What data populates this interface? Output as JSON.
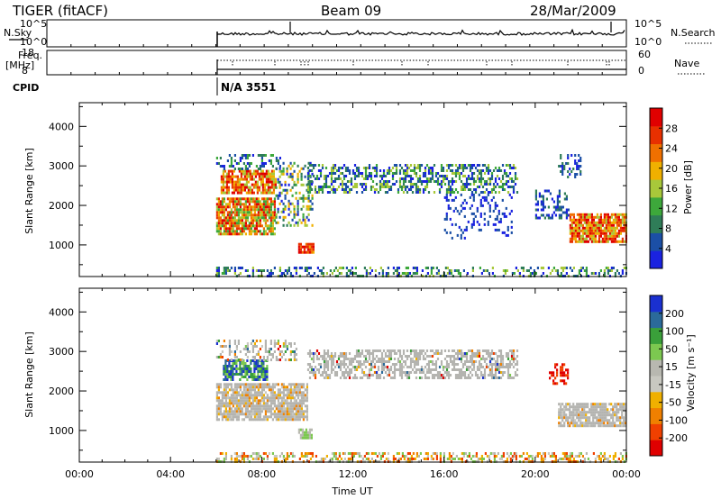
{
  "header": {
    "title": "TIGER (fitACF)",
    "beam": "Beam 09",
    "date": "28/Mar/2009"
  },
  "top_panels": {
    "nsky_label": "N.Sky",
    "nsky_ticks": [
      "10^5",
      "10^0"
    ],
    "nsearch_label": "N.Search",
    "nsearch_ticks": [
      "10^5",
      "10^0"
    ],
    "freq_label_1": "Freq.",
    "freq_label_2": "[MHz]",
    "freq_ticks": [
      "18",
      "8"
    ],
    "nave_label": "Nave",
    "nave_ticks": [
      "60",
      "0"
    ],
    "cpid_label": "CPID",
    "cpid_value": "N/A 3551"
  },
  "colors": {
    "power_scale": [
      "#1a22e0",
      "#1b4fa6",
      "#2f7d58",
      "#3da83b",
      "#a8c83a",
      "#f0b000",
      "#f07000",
      "#e83000",
      "#e00000"
    ],
    "velocity_scale": [
      "#e00000",
      "#f04000",
      "#f08000",
      "#f0b000",
      "#c8c8c0",
      "#b8b8b0",
      "#7cc850",
      "#3aa03a",
      "#2b6a9a",
      "#1a30d0"
    ],
    "ground_scatter": "#b4b4b0"
  },
  "chart_data": [
    {
      "type": "heatmap",
      "panel": "power",
      "ylabel": "Slant Range [km]",
      "xlabel": "",
      "ylim": [
        200,
        4600
      ],
      "yticks": [
        "1000",
        "2000",
        "3000",
        "4000"
      ],
      "xlim_hours": [
        0,
        24
      ],
      "colorbar_label": "Power [dB]",
      "colorbar_ticks": [
        "28",
        "24",
        "20",
        "16",
        "12",
        "8",
        "4"
      ],
      "colorbar_range": [
        0,
        32
      ],
      "data_start_hour": 6,
      "features": [
        {
          "hours": [
            6,
            8.5
          ],
          "range_km": [
            1400,
            2100
          ],
          "value_db": 22
        },
        {
          "hours": [
            6,
            8.5
          ],
          "range_km": [
            2300,
            2800
          ],
          "value_db": 24
        },
        {
          "hours": [
            9.6,
            10.2
          ],
          "range_km": [
            800,
            1050
          ],
          "value_db": 22
        },
        {
          "hours": [
            10,
            19
          ],
          "range_km": [
            2300,
            3000
          ],
          "value_db": 10
        },
        {
          "hours": [
            21.5,
            24
          ],
          "range_km": [
            1200,
            1700
          ],
          "value_db": 24
        }
      ]
    },
    {
      "type": "heatmap",
      "panel": "velocity",
      "ylabel": "Slant Range [km]",
      "xlabel": "Time UT",
      "ylim": [
        200,
        4600
      ],
      "yticks": [
        "1000",
        "2000",
        "3000",
        "4000"
      ],
      "xlim_hours": [
        0,
        24
      ],
      "xticks": [
        "00:00",
        "04:00",
        "08:00",
        "12:00",
        "16:00",
        "20:00",
        "00:00"
      ],
      "colorbar_label": "Velocity [m s⁻¹]",
      "colorbar_ticks": [
        "200",
        "100",
        "50",
        "15",
        "-15",
        "-50",
        "-100",
        "-200"
      ],
      "colorbar_range": [
        -250,
        250
      ],
      "data_start_hour": 6,
      "features": [
        {
          "hours": [
            6,
            10
          ],
          "range_km": [
            1400,
            2200
          ],
          "kind": "ground_scatter"
        },
        {
          "hours": [
            10,
            19
          ],
          "range_km": [
            2300,
            3000
          ],
          "kind": "ground_scatter"
        },
        {
          "hours": [
            21,
            24
          ],
          "range_km": [
            1100,
            1600
          ],
          "kind": "ground_scatter"
        },
        {
          "hours": [
            6.3,
            7.8
          ],
          "range_km": [
            2300,
            2800
          ],
          "value_ms": 200
        },
        {
          "hours": [
            6,
            24
          ],
          "range_km": [
            200,
            450
          ],
          "value_ms": -40
        }
      ]
    }
  ]
}
